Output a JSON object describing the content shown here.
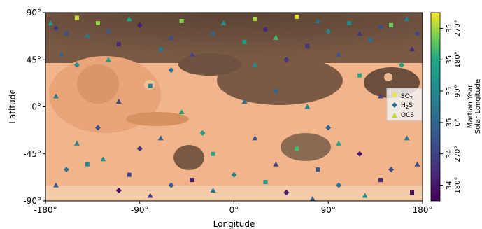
{
  "chart_data": {
    "type": "scatter",
    "xlabel": "Longitude",
    "ylabel": "Latitude",
    "xlim": [
      -180,
      180
    ],
    "ylim": [
      -90,
      90
    ],
    "x_ticks": [
      -180,
      -90,
      0,
      90,
      180
    ],
    "x_tick_labels": [
      "-180°",
      "-90°",
      "0°",
      "90°",
      "180°"
    ],
    "y_ticks": [
      90,
      45,
      0,
      -45,
      -90
    ],
    "y_tick_labels": [
      "90°",
      "45°",
      "0°",
      "-45°",
      "-90°"
    ],
    "background": "Mars basemap",
    "legend": {
      "placement": "right",
      "entries": [
        {
          "label": "SO",
          "sub": "2",
          "marker": "square",
          "color": "#f0e442"
        },
        {
          "label": "H",
          "sub": "2",
          "tail": "S",
          "marker": "diamond",
          "color": "#2a6f97"
        },
        {
          "label": "OCS",
          "marker": "triangle",
          "color": "#b5de2b"
        }
      ]
    },
    "colorbar": {
      "title_lines": [
        "Martian Year",
        "Solar Longitude"
      ],
      "colormap": "viridis",
      "ticks": [
        {
          "my": "34",
          "ls": "180°"
        },
        {
          "my": "34",
          "ls": "270°"
        },
        {
          "my": "35",
          "ls": "0°"
        },
        {
          "my": "35",
          "ls": "90°"
        },
        {
          "my": "35",
          "ls": "180°"
        },
        {
          "my": "35",
          "ls": "270°"
        }
      ]
    },
    "series": [
      {
        "name": "SO2",
        "marker": "square",
        "points": [
          [
            -150,
            85,
            0.95
          ],
          [
            -130,
            80,
            0.9
          ],
          [
            -50,
            82,
            0.88
          ],
          [
            20,
            84,
            0.92
          ],
          [
            60,
            86,
            0.97
          ],
          [
            110,
            80,
            0.6
          ],
          [
            150,
            78,
            0.85
          ],
          [
            -160,
            70,
            0.3
          ],
          [
            -110,
            60,
            0.15
          ],
          [
            -70,
            55,
            0.5
          ],
          [
            10,
            62,
            0.7
          ],
          [
            70,
            58,
            0.2
          ],
          [
            130,
            64,
            0.45
          ],
          [
            -140,
            -55,
            0.6
          ],
          [
            -100,
            -65,
            0.25
          ],
          [
            -40,
            -70,
            0.1
          ],
          [
            30,
            -72,
            0.65
          ],
          [
            80,
            -60,
            0.35
          ],
          [
            140,
            -70,
            0.12
          ],
          [
            170,
            -82,
            0.05
          ],
          [
            -20,
            -45,
            0.72
          ],
          [
            60,
            -40,
            0.8
          ],
          [
            -80,
            20,
            0.55
          ],
          [
            40,
            15,
            0.4
          ],
          [
            120,
            30,
            0.75
          ]
        ]
      },
      {
        "name": "H2S",
        "marker": "diamond",
        "points": [
          [
            -170,
            75,
            0.2
          ],
          [
            -120,
            72,
            0.35
          ],
          [
            -90,
            78,
            0.1
          ],
          [
            -20,
            70,
            0.4
          ],
          [
            30,
            74,
            0.15
          ],
          [
            90,
            72,
            0.55
          ],
          [
            140,
            76,
            0.3
          ],
          [
            175,
            70,
            0.25
          ],
          [
            -150,
            40,
            0.6
          ],
          [
            -60,
            35,
            0.45
          ],
          [
            50,
            45,
            0.2
          ],
          [
            160,
            40,
            0.7
          ],
          [
            -130,
            -20,
            0.3
          ],
          [
            -30,
            -25,
            0.65
          ],
          [
            90,
            -20,
            0.4
          ],
          [
            -160,
            -60,
            0.5
          ],
          [
            -110,
            -80,
            0.05
          ],
          [
            -60,
            -75,
            0.35
          ],
          [
            0,
            -65,
            0.55
          ],
          [
            50,
            -82,
            0.1
          ],
          [
            100,
            -75,
            0.45
          ],
          [
            150,
            -60,
            0.3
          ],
          [
            -90,
            -40,
            0.2
          ],
          [
            120,
            -45,
            0.08
          ]
        ]
      },
      {
        "name": "OCS",
        "marker": "triangle",
        "points": [
          [
            -175,
            80,
            0.65
          ],
          [
            -140,
            68,
            0.5
          ],
          [
            -100,
            84,
            0.75
          ],
          [
            -60,
            66,
            0.3
          ],
          [
            -10,
            80,
            0.6
          ],
          [
            40,
            66,
            0.8
          ],
          [
            80,
            82,
            0.45
          ],
          [
            120,
            70,
            0.2
          ],
          [
            165,
            84,
            0.55
          ],
          [
            -165,
            50,
            0.4
          ],
          [
            -120,
            45,
            0.7
          ],
          [
            -40,
            50,
            0.25
          ],
          [
            20,
            40,
            0.6
          ],
          [
            100,
            50,
            0.35
          ],
          [
            170,
            55,
            0.15
          ],
          [
            -170,
            10,
            0.5
          ],
          [
            -110,
            5,
            0.3
          ],
          [
            -50,
            -5,
            0.75
          ],
          [
            10,
            5,
            0.45
          ],
          [
            70,
            0,
            0.6
          ],
          [
            140,
            10,
            0.25
          ],
          [
            -150,
            -35,
            0.55
          ],
          [
            -70,
            -30,
            0.4
          ],
          [
            20,
            -30,
            0.3
          ],
          [
            100,
            -35,
            0.7
          ],
          [
            165,
            -30,
            0.5
          ],
          [
            -170,
            -75,
            0.35
          ],
          [
            -125,
            -50,
            0.6
          ],
          [
            -80,
            -85,
            0.2
          ],
          [
            -20,
            -80,
            0.5
          ],
          [
            40,
            -55,
            0.25
          ],
          [
            75,
            -88,
            0.4
          ],
          [
            125,
            -85,
            0.6
          ],
          [
            175,
            -55,
            0.3
          ]
        ]
      }
    ]
  }
}
